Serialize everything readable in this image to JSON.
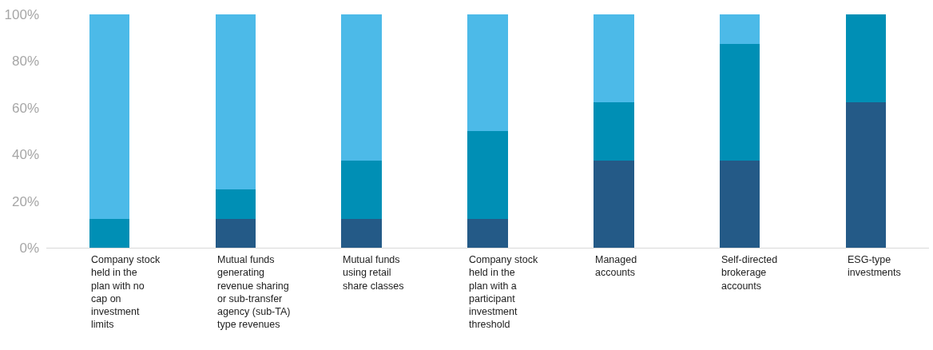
{
  "chart_data": {
    "type": "bar",
    "stacked": true,
    "categories": [
      "Company stock held in the plan with no cap on investment limits",
      "Mutual funds generating revenue sharing or sub-transfer agency (sub-TA) type revenues",
      "Mutual funds using retail share classes",
      "Company stock held in the plan with a participant investment threshold",
      "Managed accounts",
      "Self-directed brokerage accounts",
      "ESG-type investments"
    ],
    "series": [
      {
        "color": "#245a87",
        "values": [
          0,
          12.5,
          12.5,
          12.5,
          37.5,
          37.5,
          62.5
        ]
      },
      {
        "color": "#008fb5",
        "values": [
          12.5,
          12.5,
          25,
          37.5,
          25,
          50,
          37.5
        ]
      },
      {
        "color": "#4cbae8",
        "values": [
          87.5,
          75,
          62.5,
          50,
          37.5,
          12.5,
          0
        ]
      }
    ],
    "ylim": [
      0,
      100
    ],
    "yticks": [
      {
        "value": 0,
        "label": "0%"
      },
      {
        "value": 20,
        "label": "20%"
      },
      {
        "value": 40,
        "label": "40%"
      },
      {
        "value": 60,
        "label": "60%"
      },
      {
        "value": 80,
        "label": "80%"
      },
      {
        "value": 100,
        "label": "100%"
      }
    ],
    "grid": false
  }
}
